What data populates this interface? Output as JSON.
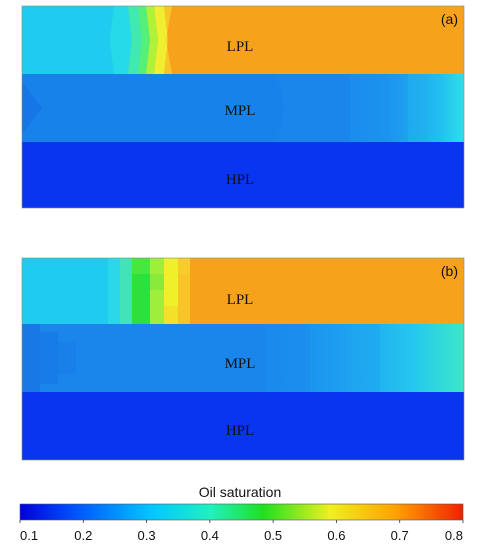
{
  "panels": [
    {
      "tag": "(a)",
      "layers": [
        {
          "label": "LPL"
        },
        {
          "label": "MPL"
        },
        {
          "label": "HPL"
        }
      ]
    },
    {
      "tag": "(b)",
      "layers": [
        {
          "label": "LPL"
        },
        {
          "label": "MPL"
        },
        {
          "label": "HPL"
        }
      ]
    }
  ],
  "colorbar": {
    "title": "Oil saturation",
    "min": 0.1,
    "max": 0.8,
    "ticks": [
      "0.1",
      "0.2",
      "0.3",
      "0.4",
      "0.5",
      "0.6",
      "0.7",
      "0.8"
    ]
  },
  "colors": {
    "lpl_oil": "#F7A21B",
    "lpl_water": "#1FCCF0",
    "mpl": "#1A86EC",
    "hpl": "#0A35F0",
    "front_green": "#2DE03C",
    "front_yellow": "#F0F02A",
    "right_cyan": "#26D7EE"
  }
}
